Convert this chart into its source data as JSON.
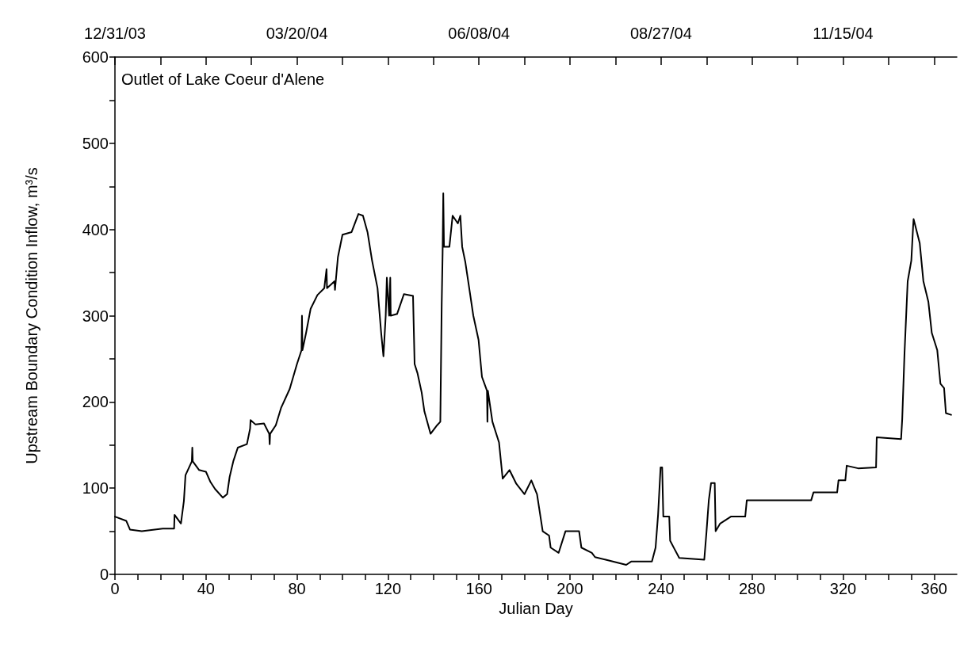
{
  "chart_data": {
    "type": "line",
    "xlabel": "Julian Day",
    "ylabel": "Upstream Boundary Condition Inflow, m³/s",
    "annotations": [
      "Outlet of Lake Coeur d'Alene"
    ],
    "xlim": [
      0,
      370
    ],
    "xticks": [
      0,
      {
        "value": 10,
        "label": null
      },
      {
        "value": 20,
        "label": null
      },
      {
        "value": 30,
        "label": null
      },
      40,
      {
        "value": 50,
        "label": null
      },
      {
        "value": 60,
        "label": null
      },
      {
        "value": 70,
        "label": null
      },
      80,
      {
        "value": 90,
        "label": null
      },
      {
        "value": 100,
        "label": null
      },
      {
        "value": 110,
        "label": null
      },
      120,
      {
        "value": 130,
        "label": null
      },
      {
        "value": 140,
        "label": null
      },
      {
        "value": 150,
        "label": null
      },
      160,
      {
        "value": 170,
        "label": null
      },
      {
        "value": 180,
        "label": null
      },
      {
        "value": 190,
        "label": null
      },
      200,
      {
        "value": 210,
        "label": null
      },
      {
        "value": 220,
        "label": null
      },
      {
        "value": 230,
        "label": null
      },
      240,
      {
        "value": 250,
        "label": null
      },
      {
        "value": 260,
        "label": null
      },
      {
        "value": 270,
        "label": null
      },
      280,
      {
        "value": 290,
        "label": null
      },
      {
        "value": 300,
        "label": null
      },
      {
        "value": 310,
        "label": null
      },
      320,
      {
        "value": 330,
        "label": null
      },
      {
        "value": 340,
        "label": null
      },
      {
        "value": 350,
        "label": null
      },
      360
    ],
    "x2lim": [
      "2003-12-31",
      "2005-01-04"
    ],
    "x2ticks": [
      {
        "value": "2003-12-31",
        "label": "12/31/03"
      },
      {
        "value": "2004-01-20",
        "label": null
      },
      {
        "value": "2004-02-09",
        "label": null
      },
      {
        "value": "2004-02-29",
        "label": null
      },
      {
        "value": "2004-03-20",
        "label": "03/20/04"
      },
      {
        "value": "2004-04-09",
        "label": null
      },
      {
        "value": "2004-04-29",
        "label": null
      },
      {
        "value": "2004-05-19",
        "label": null
      },
      {
        "value": "2004-06-08",
        "label": "06/08/04"
      },
      {
        "value": "2004-06-28",
        "label": null
      },
      {
        "value": "2004-07-18",
        "label": null
      },
      {
        "value": "2004-08-07",
        "label": null
      },
      {
        "value": "2004-08-27",
        "label": "08/27/04"
      },
      {
        "value": "2004-09-16",
        "label": null
      },
      {
        "value": "2004-10-06",
        "label": null
      },
      {
        "value": "2004-10-26",
        "label": null
      },
      {
        "value": "2004-11-15",
        "label": "11/15/04"
      },
      {
        "value": "2004-12-05",
        "label": null
      },
      {
        "value": "2004-12-25",
        "label": null
      }
    ],
    "ylim": [
      0,
      600
    ],
    "yticks": [
      0,
      {
        "value": 50,
        "label": null
      },
      100,
      {
        "value": 150,
        "label": null
      },
      200,
      {
        "value": 250,
        "label": null
      },
      300,
      {
        "value": 350,
        "label": null
      },
      400,
      {
        "value": 450,
        "label": null
      },
      500,
      {
        "value": 550,
        "label": null
      },
      600
    ],
    "grid": false,
    "marker": "none",
    "line_style": "solid",
    "series": [
      {
        "color": "#000000",
        "x": [
          0,
          5,
          6.6,
          11.8,
          21,
          26,
          26.2,
          29,
          30.3,
          31,
          33.8,
          34,
          34.2,
          37,
          40,
          42,
          44,
          47.4,
          49.3,
          50.4,
          52,
          54,
          58,
          59.4,
          59.6,
          61.7,
          65.5,
          67.8,
          68,
          68.2,
          70.7,
          73,
          76.8,
          80,
          82,
          82.2,
          82.4,
          84,
          86,
          89,
          92,
          93,
          93.2,
          96.5,
          96.7,
          98,
          100,
          104,
          107,
          109,
          111,
          113,
          115.4,
          117,
          118,
          119,
          119.5,
          120.5,
          121,
          121.2,
          124,
          127,
          131,
          131.7,
          133,
          134.8,
          136,
          138.7,
          141.6,
          143,
          143.6,
          144,
          144.3,
          144.6,
          147,
          148.4,
          150.7,
          151.8,
          152.6,
          154,
          155.7,
          157.5,
          159.8,
          161.3,
          163.5,
          163.7,
          163.9,
          165.9,
          168.8,
          170.4,
          173.4,
          176.4,
          180,
          183,
          185.5,
          188,
          190.8,
          191.5,
          195,
          198,
          204,
          205,
          209.6,
          211,
          215.7,
          224.7,
          227,
          236,
          237.6,
          238.7,
          239.8,
          240.5,
          241,
          243.6,
          244,
          245.8,
          248,
          259,
          260,
          261,
          262,
          263.6,
          264,
          266,
          270.7,
          277,
          277.7,
          306,
          307,
          317.4,
          318,
          321,
          321.6,
          326.6,
          334.5,
          334.8,
          345.5,
          346,
          347,
          348.4,
          350,
          350.8,
          351,
          353.7,
          355.3,
          357.5,
          359,
          361.4,
          362.8,
          364.4,
          365.2,
          367.5
        ],
        "values": [
          67,
          62,
          52,
          50,
          53,
          53,
          69,
          59,
          85,
          115,
          131,
          147,
          131,
          121,
          119,
          107,
          99,
          89,
          93,
          113,
          131,
          147,
          151,
          169,
          179,
          174,
          175,
          163,
          151,
          163,
          173,
          193,
          215,
          244,
          260,
          300,
          260,
          280,
          308,
          324,
          332,
          354,
          332,
          340,
          330,
          368,
          394,
          397,
          418,
          416,
          397,
          364,
          332,
          280,
          253,
          300,
          344,
          300,
          344,
          300,
          302,
          325,
          323,
          244,
          233,
          211,
          189,
          163,
          173,
          177,
          312,
          372,
          442,
          380,
          380,
          416,
          407,
          416,
          380,
          362,
          332,
          300,
          272,
          229,
          213,
          177,
          213,
          177,
          153,
          111,
          121,
          105,
          93,
          109,
          93,
          50,
          45,
          31,
          25,
          50,
          50,
          31,
          25,
          20,
          17,
          11,
          15,
          15,
          31,
          69,
          124,
          124,
          67,
          67,
          39,
          30,
          19,
          17,
          50,
          86,
          106,
          106,
          50,
          59,
          67,
          67,
          86,
          86,
          95,
          95,
          109,
          109,
          126,
          123,
          124,
          159,
          157,
          180,
          256,
          340,
          364,
          404,
          412,
          384,
          340,
          316,
          280,
          260,
          221,
          216,
          187,
          185
        ]
      }
    ]
  }
}
